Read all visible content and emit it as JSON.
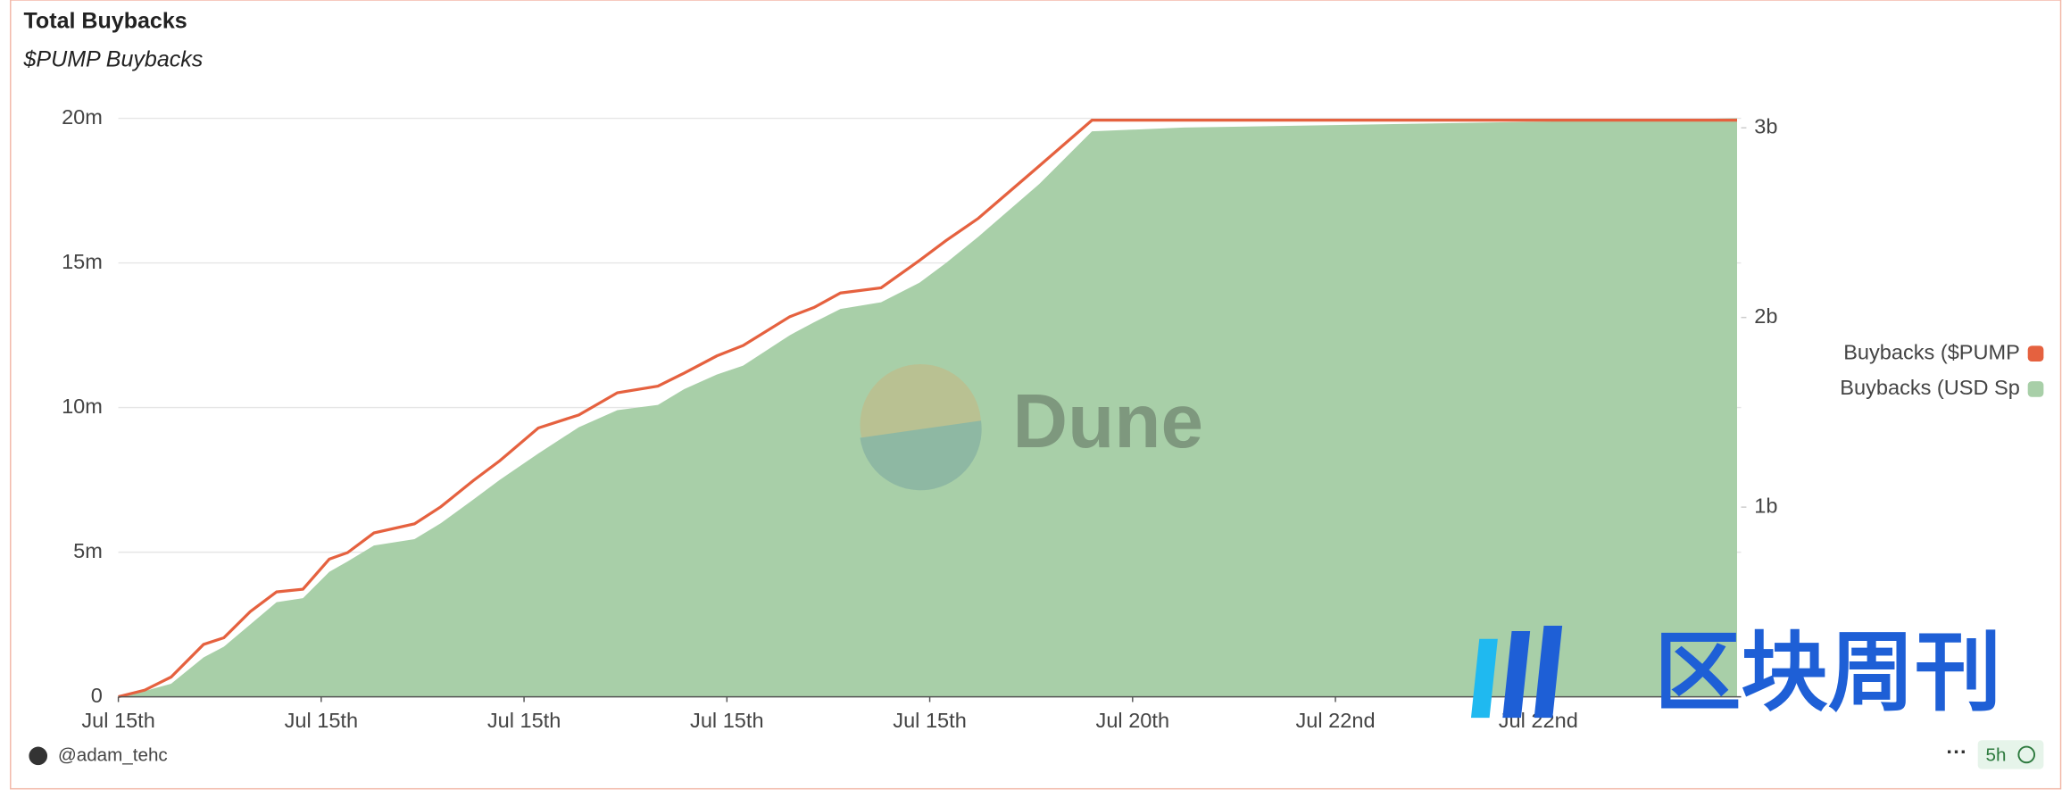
{
  "chart_data": {
    "type": "line",
    "title": "Total Buybacks",
    "subtitle": "$PUMP Buybacks",
    "x": [
      0,
      0.13,
      0.26,
      0.42,
      0.52,
      0.65,
      0.78,
      0.91,
      1.04,
      1.13,
      1.26,
      1.46,
      1.59,
      1.75,
      1.88,
      2.07,
      2.27,
      2.46,
      2.66,
      2.79,
      2.95,
      3.08,
      3.31,
      3.43,
      3.56,
      3.76,
      3.95,
      4.08,
      4.24,
      4.54,
      4.8,
      5.25,
      7.98
    ],
    "xlim": [
      0,
      8
    ],
    "xticks": [
      {
        "value": 0,
        "label": "Jul 15th"
      },
      {
        "value": 1,
        "label": "Jul 15th"
      },
      {
        "value": 2,
        "label": "Jul 15th"
      },
      {
        "value": 3,
        "label": "Jul 15th"
      },
      {
        "value": 4,
        "label": "Jul 15th"
      },
      {
        "value": 5,
        "label": "Jul 20th"
      },
      {
        "value": 6,
        "label": "Jul 22nd"
      },
      {
        "value": 7,
        "label": "Jul 22nd"
      }
    ],
    "ylim": [
      0,
      20000000
    ],
    "yticks": [
      {
        "value": 0,
        "label": "0"
      },
      {
        "value": 5000000,
        "label": "5m"
      },
      {
        "value": 10000000,
        "label": "10m"
      },
      {
        "value": 15000000,
        "label": "15m"
      },
      {
        "value": 20000000,
        "label": "20m"
      }
    ],
    "y2lim": [
      0,
      3050000000
    ],
    "y2ticks": [
      {
        "value": 1000000000,
        "label": "1b"
      },
      {
        "value": 2000000000,
        "label": "2b"
      },
      {
        "value": 3000000000,
        "label": "3b"
      }
    ],
    "grid": true,
    "legend": "right",
    "series": [
      {
        "name": "Buybacks ($PUMP",
        "color": "#e5613f",
        "axis": "y2",
        "style": "line",
        "values": [
          0,
          35000000,
          104000000,
          276000000,
          311000000,
          449000000,
          553000000,
          567000000,
          726000000,
          760000000,
          864000000,
          912000000,
          1002000000,
          1140000000,
          1244000000,
          1417000000,
          1486000000,
          1603000000,
          1638000000,
          1707000000,
          1797000000,
          1852000000,
          2004000000,
          2053000000,
          2129000000,
          2156000000,
          2301000000,
          2405000000,
          2523000000,
          2799000000,
          3040000000,
          3040000000,
          3040000000
        ]
      },
      {
        "name": "Buybacks (USD Sp",
        "color": "#a8cfa8",
        "axis": "y",
        "style": "area",
        "values": [
          0,
          200000,
          450000,
          1360000,
          1730000,
          2500000,
          3270000,
          3410000,
          4320000,
          4680000,
          5230000,
          5450000,
          6000000,
          6820000,
          7500000,
          8410000,
          9320000,
          9910000,
          10090000,
          10640000,
          11140000,
          11450000,
          12500000,
          12950000,
          13410000,
          13640000,
          14320000,
          15000000,
          15910000,
          17730000,
          19550000,
          19680000,
          20000000
        ]
      }
    ],
    "watermark": "Dune",
    "overlay_text": "区块周刊",
    "author": "@adam_tehc",
    "updated": "5h"
  }
}
